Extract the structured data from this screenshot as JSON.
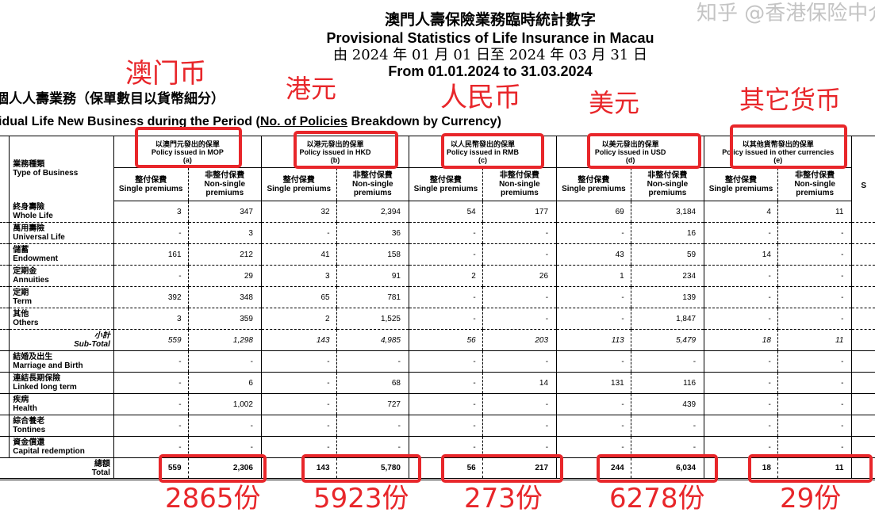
{
  "header": {
    "title_zh": "澳門人壽保險業務臨時統計數字",
    "title_en": "Provisional Statistics of Life Insurance in Macau",
    "period_zh": "由 2024 年 01 月 01 日至 2024 年 03 月 31 日",
    "period_en": "From 01.01.2024 to 31.03.2024",
    "section_zh": "個人人壽業務（保單數目以貨幣細分）",
    "section_en_a": "idual Life New Business during the Period (",
    "section_en_u": "No. of Policies",
    "section_en_b": " Breakdown by Currency)"
  },
  "table": {
    "type_header_zh": "業務種類",
    "type_header_en": "Type of Business",
    "currencies": [
      {
        "zh": "以澳門元發出的保單",
        "en": "Policy issued in MOP",
        "code": "(a)"
      },
      {
        "zh": "以港元發出的保單",
        "en": "Policy issued in HKD",
        "code": "(b)"
      },
      {
        "zh": "以人民幣發出的保單",
        "en": "Policy issued in RMB",
        "code": "(c)"
      },
      {
        "zh": "以美元發出的保單",
        "en": "Policy issued in USD",
        "code": "(d)"
      },
      {
        "zh": "以其他貨幣發出的保單",
        "en": "Policy issued in other currencies",
        "code": "(e)"
      }
    ],
    "single_zh": "整付保費",
    "single_en": "Single premiums",
    "nonsingle_zh": "非整付保費",
    "nonsingle_en": "Non-single premiums",
    "extra_col": "S",
    "rows": [
      {
        "zh": "終身壽險",
        "en": "Whole Life",
        "values": [
          "3",
          "347",
          "32",
          "2,394",
          "54",
          "177",
          "69",
          "3,184",
          "4",
          "11"
        ],
        "style": "dash"
      },
      {
        "zh": "萬用壽險",
        "en": "Universal Life",
        "values": [
          "-",
          "3",
          "-",
          "36",
          "-",
          "-",
          "-",
          "16",
          "-",
          "-"
        ],
        "style": "dash"
      },
      {
        "zh": "儲蓄",
        "en": "Endowment",
        "values": [
          "161",
          "212",
          "41",
          "158",
          "-",
          "-",
          "43",
          "59",
          "14",
          "-"
        ],
        "style": "dash"
      },
      {
        "zh": "定期金",
        "en": "Annuities",
        "values": [
          "-",
          "29",
          "3",
          "91",
          "2",
          "26",
          "1",
          "234",
          "-",
          "-"
        ],
        "style": "dash"
      },
      {
        "zh": "定期",
        "en": "Term",
        "values": [
          "392",
          "348",
          "65",
          "781",
          "-",
          "-",
          "-",
          "139",
          "-",
          "-"
        ],
        "style": "dash"
      },
      {
        "zh": "其他",
        "en": "Others",
        "values": [
          "3",
          "359",
          "2",
          "1,525",
          "-",
          "-",
          "-",
          "1,847",
          "-",
          "-"
        ],
        "style": "dash"
      },
      {
        "zh": "小計",
        "en": "Sub-Total",
        "values": [
          "559",
          "1,298",
          "143",
          "4,985",
          "56",
          "203",
          "113",
          "5,479",
          "18",
          "11"
        ],
        "style": "subtotal"
      },
      {
        "zh": "結婚及出生",
        "en": "Marriage and Birth",
        "values": [
          "-",
          "-",
          "-",
          "-",
          "-",
          "-",
          "-",
          "-",
          "-",
          "-"
        ],
        "style": "solid"
      },
      {
        "zh": "連結長期保險",
        "en": "Linked long term",
        "values": [
          "-",
          "6",
          "-",
          "68",
          "-",
          "14",
          "131",
          "116",
          "-",
          "-"
        ],
        "style": "solid"
      },
      {
        "zh": "疾病",
        "en": "Health",
        "values": [
          "-",
          "1,002",
          "-",
          "727",
          "-",
          "-",
          "-",
          "439",
          "-",
          "-"
        ],
        "style": "solid"
      },
      {
        "zh": "綜合養老",
        "en": "Tontines",
        "values": [
          "-",
          "-",
          "-",
          "-",
          "-",
          "-",
          "-",
          "-",
          "-",
          "-"
        ],
        "style": "solid"
      },
      {
        "zh": "資金償還",
        "en": "Capital redemption",
        "values": [
          "-",
          "-",
          "-",
          "-",
          "-",
          "-",
          "-",
          "-",
          "-",
          "-"
        ],
        "style": "solid"
      },
      {
        "zh": "總額",
        "en": "Total",
        "values": [
          "559",
          "2,306",
          "143",
          "5,780",
          "56",
          "217",
          "244",
          "6,034",
          "18",
          "11"
        ],
        "style": "total"
      }
    ]
  },
  "annotations": {
    "color": "#e8262a",
    "currency_labels": [
      "澳门币",
      "港元",
      "人民币",
      "美元",
      "其它货币"
    ],
    "totals": [
      "2865份",
      "5923份",
      "273份",
      "6278份",
      "29份"
    ]
  },
  "watermark": "知乎 @香港保险中介"
}
